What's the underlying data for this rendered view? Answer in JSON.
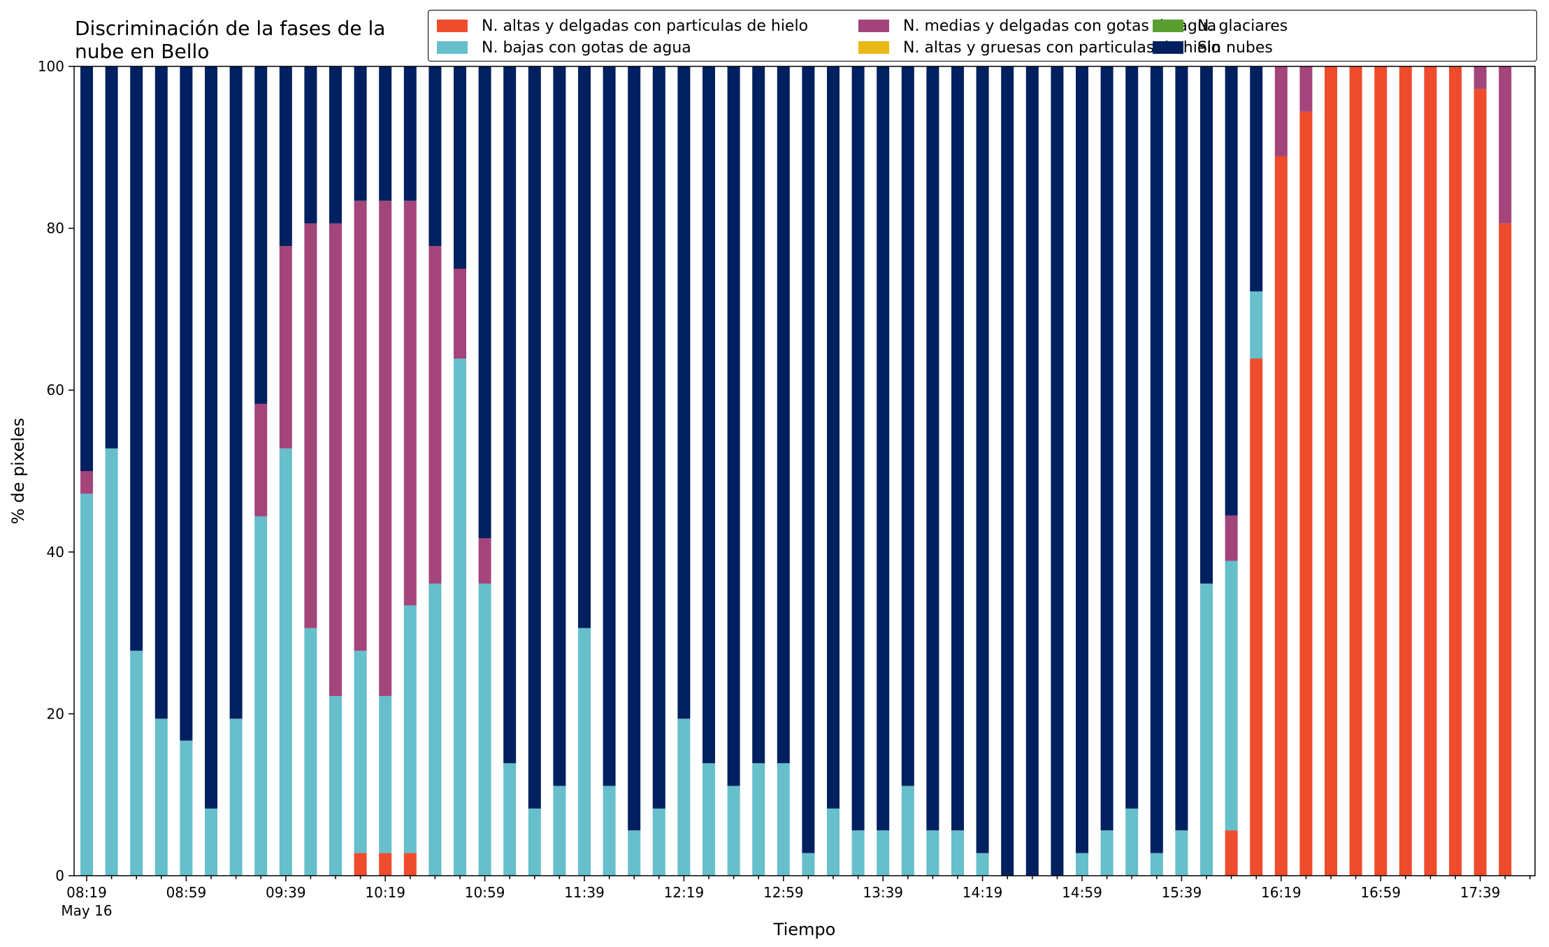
{
  "chart_data": {
    "type": "bar",
    "stacked": true,
    "title": "Discriminación de la fases de la\nnube en Bello",
    "xlabel": "Tiempo",
    "ylabel": "% de pixeles",
    "ylim": [
      0,
      100
    ],
    "yticks": [
      0,
      20,
      40,
      60,
      80,
      100
    ],
    "xtick_labels": [
      "08:19",
      "08:59",
      "09:39",
      "10:19",
      "10:59",
      "11:39",
      "12:19",
      "12:59",
      "13:39",
      "14:19",
      "14:59",
      "15:39",
      "16:19",
      "16:59",
      "17:39"
    ],
    "xtick_sublabel": "May 16",
    "categories": [
      "08:19",
      "08:29",
      "08:39",
      "08:49",
      "08:59",
      "09:09",
      "09:19",
      "09:29",
      "09:39",
      "09:49",
      "09:59",
      "10:09",
      "10:19",
      "10:29",
      "10:39",
      "10:49",
      "10:59",
      "11:09",
      "11:19",
      "11:29",
      "11:39",
      "11:49",
      "11:59",
      "12:09",
      "12:19",
      "12:29",
      "12:39",
      "12:49",
      "12:59",
      "13:09",
      "13:19",
      "13:29",
      "13:39",
      "13:49",
      "13:59",
      "14:09",
      "14:19",
      "14:29",
      "14:39",
      "14:49",
      "14:59",
      "15:09",
      "15:19",
      "15:29",
      "15:39",
      "15:49",
      "15:59",
      "16:09",
      "16:19",
      "16:29",
      "16:39",
      "16:49",
      "16:59",
      "17:09",
      "17:19",
      "17:29",
      "17:39",
      "17:49"
    ],
    "grid": false,
    "legend_position": "top-right",
    "series": [
      {
        "name": "N. altas y delgadas con particulas de hielo",
        "color": "#ee4c2c",
        "values": [
          0,
          0,
          0,
          0,
          0,
          0,
          0,
          0,
          0,
          0,
          0,
          2.8,
          2.8,
          2.8,
          0,
          0,
          0,
          0,
          0,
          0,
          0,
          0,
          0,
          0,
          0,
          0,
          0,
          0,
          0,
          0,
          0,
          0,
          0,
          0,
          0,
          0,
          0,
          0,
          0,
          0,
          0,
          0,
          0,
          0,
          0,
          0,
          5.6,
          63.9,
          88.9,
          94.4,
          100,
          100,
          100,
          100,
          100,
          100,
          97.2,
          80.6
        ]
      },
      {
        "name": "N. altas y gruesas con particulas de hielo",
        "color": "#e8b817",
        "values": [
          0,
          0,
          0,
          0,
          0,
          0,
          0,
          0,
          0,
          0,
          0,
          0,
          0,
          0,
          0,
          0,
          0,
          0,
          0,
          0,
          0,
          0,
          0,
          0,
          0,
          0,
          0,
          0,
          0,
          0,
          0,
          0,
          0,
          0,
          0,
          0,
          0,
          0,
          0,
          0,
          0,
          0,
          0,
          0,
          0,
          0,
          0,
          0,
          0,
          0,
          0,
          0,
          0,
          0,
          0,
          0,
          0,
          0
        ]
      },
      {
        "name": "N. bajas con gotas de agua",
        "color": "#66bfcb",
        "values": [
          47.2,
          52.8,
          27.8,
          19.4,
          16.7,
          8.3,
          19.4,
          44.4,
          52.8,
          30.6,
          22.2,
          25.0,
          19.4,
          30.6,
          36.1,
          63.9,
          36.1,
          13.9,
          8.3,
          11.1,
          30.6,
          11.1,
          5.6,
          8.3,
          19.4,
          13.9,
          11.1,
          13.9,
          13.9,
          2.8,
          8.3,
          5.6,
          5.6,
          11.1,
          5.6,
          5.6,
          2.8,
          0,
          0,
          0,
          2.8,
          5.6,
          8.3,
          2.8,
          5.6,
          36.1,
          33.3,
          8.3,
          0,
          0,
          0,
          0,
          0,
          0,
          0,
          0,
          0,
          0
        ]
      },
      {
        "name": "N. glaciares",
        "color": "#5a9e2f",
        "values": [
          0,
          0,
          0,
          0,
          0,
          0,
          0,
          0,
          0,
          0,
          0,
          0,
          0,
          0,
          0,
          0,
          0,
          0,
          0,
          0,
          0,
          0,
          0,
          0,
          0,
          0,
          0,
          0,
          0,
          0,
          0,
          0,
          0,
          0,
          0,
          0,
          0,
          0,
          0,
          0,
          0,
          0,
          0,
          0,
          0,
          0,
          0,
          0,
          0,
          0,
          0,
          0,
          0,
          0,
          0,
          0,
          0,
          0
        ]
      },
      {
        "name": "N. medias y delgadas con gotas de agua",
        "color": "#a3457a",
        "values": [
          2.8,
          0,
          0,
          0,
          0,
          0,
          0,
          13.9,
          25.0,
          50.0,
          58.4,
          55.6,
          61.2,
          50.0,
          41.7,
          11.1,
          5.6,
          0,
          0,
          0,
          0,
          0,
          0,
          0,
          0,
          0,
          0,
          0,
          0,
          0,
          0,
          0,
          0,
          0,
          0,
          0,
          0,
          0,
          0,
          0,
          0,
          0,
          0,
          0,
          0,
          0,
          5.6,
          0,
          11.1,
          5.6,
          0,
          0,
          0,
          0,
          0,
          0,
          2.8,
          19.4
        ]
      },
      {
        "name": "Sin nubes",
        "color": "#002060",
        "values": [
          50.0,
          47.2,
          72.2,
          80.6,
          83.3,
          91.7,
          80.6,
          41.7,
          22.2,
          19.4,
          19.4,
          16.6,
          16.6,
          16.6,
          22.2,
          25.0,
          58.3,
          86.1,
          91.7,
          88.9,
          69.4,
          88.9,
          94.4,
          91.7,
          80.6,
          86.1,
          88.9,
          86.1,
          86.1,
          97.2,
          91.7,
          94.4,
          94.4,
          88.9,
          94.4,
          94.4,
          97.2,
          100,
          100,
          100,
          97.2,
          94.4,
          91.7,
          97.2,
          94.4,
          63.9,
          55.5,
          27.8,
          0,
          0,
          0,
          0,
          0,
          0,
          0,
          0,
          0,
          0
        ]
      }
    ]
  },
  "legend_order": [
    0,
    2,
    4,
    1,
    3,
    5
  ]
}
